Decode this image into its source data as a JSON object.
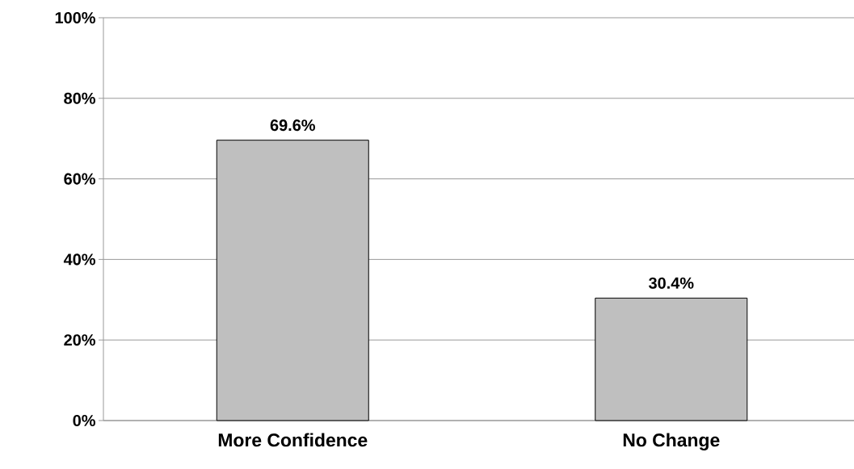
{
  "chart_data": {
    "type": "bar",
    "categories": [
      "More Confidence",
      "No Change"
    ],
    "values": [
      69.6,
      30.4
    ],
    "value_labels": [
      "69.6%",
      "30.4%"
    ],
    "color": "#bfbfbf",
    "ylim": [
      0,
      100
    ],
    "yticks": [
      {
        "value": 0,
        "label": "0%"
      },
      {
        "value": 20,
        "label": "20%"
      },
      {
        "value": 40,
        "label": "40%"
      },
      {
        "value": 60,
        "label": "60%"
      },
      {
        "value": 80,
        "label": "80%"
      },
      {
        "value": 100,
        "label": "100%"
      }
    ],
    "grid": "y"
  }
}
